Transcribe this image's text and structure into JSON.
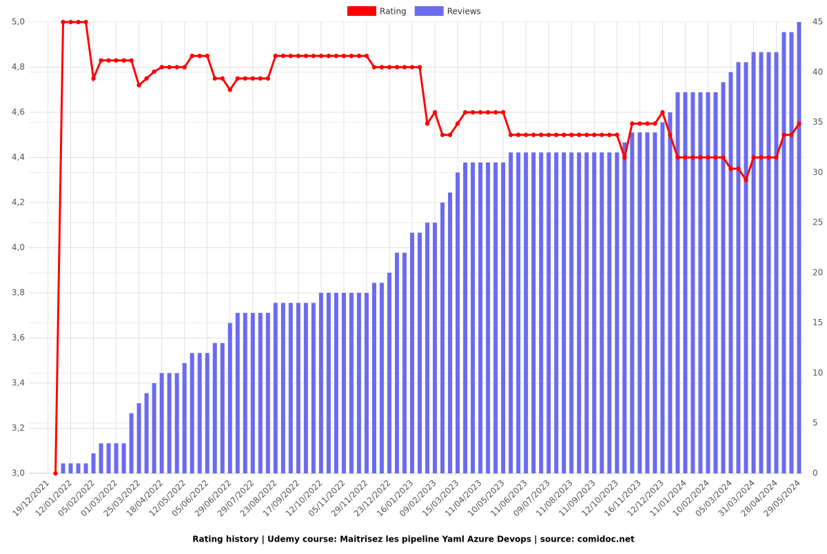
{
  "chart_data": {
    "type": "combo",
    "title": "Rating history | Udemy course: Maitrisez les pipeline Yaml Azure Devops | source: comidoc.net",
    "categories": [
      null,
      null,
      "19/12/2021",
      null,
      null,
      "12/01/2022",
      null,
      null,
      "05/02/2022",
      null,
      null,
      "01/03/2022",
      null,
      null,
      "25/03/2022",
      null,
      null,
      "18/04/2022",
      null,
      null,
      "12/05/2022",
      null,
      null,
      "05/06/2022",
      null,
      null,
      "29/06/2022",
      null,
      null,
      "29/07/2022",
      null,
      null,
      "23/08/2022",
      null,
      null,
      "17/09/2022",
      null,
      null,
      "12/10/2022",
      null,
      null,
      "05/11/2022",
      null,
      null,
      "29/11/2022",
      null,
      null,
      "23/12/2022",
      null,
      null,
      "16/01/2023",
      null,
      null,
      "09/02/2023",
      null,
      null,
      "15/03/2023",
      null,
      null,
      "11/04/2023",
      null,
      null,
      "10/05/2023",
      null,
      null,
      "11/06/2023",
      null,
      null,
      "09/07/2023",
      null,
      null,
      "11/08/2023",
      null,
      null,
      "11/09/2023",
      null,
      null,
      "12/10/2023",
      null,
      null,
      "16/11/2023",
      null,
      null,
      "12/12/2023",
      null,
      null,
      "11/01/2024",
      null,
      null,
      "10/02/2024",
      null,
      null,
      "05/03/2024",
      null,
      null,
      "31/03/2024",
      null,
      null,
      "28/04/2024",
      null,
      null,
      "29/05/2024"
    ],
    "series": [
      {
        "name": "Rating",
        "type": "line",
        "color": "#ff0000",
        "axis": "y",
        "values": [
          null,
          null,
          null,
          3,
          5,
          5,
          5,
          5,
          4.75,
          4.83,
          4.83,
          4.83,
          4.83,
          4.83,
          4.72,
          4.75,
          4.78,
          4.8,
          4.8,
          4.8,
          4.8,
          4.85,
          4.85,
          4.85,
          4.75,
          4.75,
          4.7,
          4.75,
          4.75,
          4.75,
          4.75,
          4.75,
          4.85,
          4.85,
          4.85,
          4.85,
          4.85,
          4.85,
          4.85,
          4.85,
          4.85,
          4.85,
          4.85,
          4.85,
          4.85,
          4.8,
          4.8,
          4.8,
          4.8,
          4.8,
          4.8,
          4.8,
          4.55,
          4.6,
          4.5,
          4.5,
          4.55,
          4.6,
          4.6,
          4.6,
          4.6,
          4.6,
          4.6,
          4.5,
          4.5,
          4.5,
          4.5,
          4.5,
          4.5,
          4.5,
          4.5,
          4.5,
          4.5,
          4.5,
          4.5,
          4.5,
          4.5,
          4.5,
          4.4,
          4.55,
          4.55,
          4.55,
          4.55,
          4.6,
          4.5,
          4.4,
          4.4,
          4.4,
          4.4,
          4.4,
          4.4,
          4.4,
          4.35,
          4.35,
          4.3,
          4.4,
          4.4,
          4.4,
          4.4,
          4.5,
          4.5,
          4.55
        ]
      },
      {
        "name": "Reviews",
        "type": "bar",
        "color": "#6b6bef",
        "axis": "y2",
        "values": [
          0,
          0,
          0,
          0,
          1,
          1,
          1,
          1,
          2,
          3,
          3,
          3,
          3,
          6,
          7,
          8,
          9,
          10,
          10,
          10,
          11,
          12,
          12,
          12,
          13,
          13,
          15,
          16,
          16,
          16,
          16,
          16,
          17,
          17,
          17,
          17,
          17,
          17,
          18,
          18,
          18,
          18,
          18,
          18,
          18,
          19,
          19,
          20,
          22,
          22,
          24,
          24,
          25,
          25,
          27,
          28,
          30,
          31,
          31,
          31,
          31,
          31,
          31,
          32,
          32,
          32,
          32,
          32,
          32,
          32,
          32,
          32,
          32,
          32,
          32,
          32,
          32,
          32,
          33,
          34,
          34,
          34,
          34,
          35,
          36,
          38,
          38,
          38,
          38,
          38,
          38,
          39,
          40,
          41,
          41,
          42,
          42,
          42,
          42,
          44,
          44,
          45
        ]
      }
    ],
    "ylim": [
      3,
      5
    ],
    "yticks": [
      {
        "value": 3,
        "label": "3,0"
      },
      {
        "value": 3.2,
        "label": "3,2"
      },
      {
        "value": 3.4,
        "label": "3,4"
      },
      {
        "value": 3.6,
        "label": "3,6"
      },
      {
        "value": 3.8,
        "label": "3,8"
      },
      {
        "value": 4,
        "label": "4,0"
      },
      {
        "value": 4.2,
        "label": "4,2"
      },
      {
        "value": 4.4,
        "label": "4,4"
      },
      {
        "value": 4.6,
        "label": "4,6"
      },
      {
        "value": 4.8,
        "label": "4,8"
      },
      {
        "value": 5,
        "label": "5,0"
      }
    ],
    "y2lim": [
      0,
      45
    ],
    "y2ticks": [
      0,
      5,
      10,
      15,
      20,
      25,
      30,
      35,
      40,
      45
    ],
    "grid": true,
    "legend": "top"
  }
}
